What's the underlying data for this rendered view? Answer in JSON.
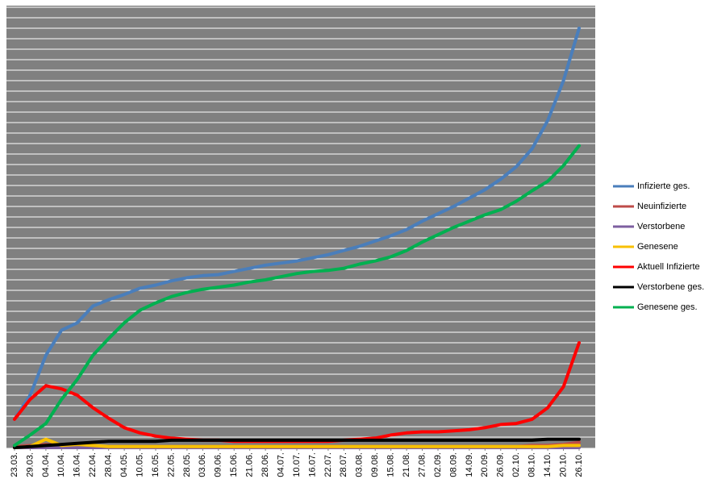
{
  "chart_data": {
    "type": "line",
    "categories": [
      "23.03.",
      "29.03.",
      "04.04.",
      "10.04.",
      "16.04.",
      "22.04.",
      "28.04.",
      "04.05.",
      "10.05.",
      "16.05.",
      "22.05.",
      "28.05.",
      "03.06.",
      "09.06.",
      "15.06.",
      "21.06.",
      "28.06.",
      "04.07.",
      "10.07.",
      "16.07.",
      "22.07.",
      "28.07.",
      "03.08.",
      "09.08.",
      "15.08.",
      "21.08.",
      "27.08.",
      "02.09.",
      "08.09.",
      "14.09.",
      "20.09.",
      "26.09.",
      "02.10.",
      "08.10.",
      "14.10.",
      "20.10.",
      "26.10."
    ],
    "series": [
      {
        "name": "Infizierte ges.",
        "color": "#4a7ebb",
        "values": [
          2.7,
          5.0,
          8.8,
          11.2,
          11.9,
          13.5,
          14.1,
          14.6,
          15.2,
          15.5,
          15.9,
          16.2,
          16.4,
          16.5,
          16.8,
          17.1,
          17.4,
          17.6,
          17.8,
          18.1,
          18.4,
          18.8,
          19.2,
          19.7,
          20.2,
          20.8,
          21.6,
          22.3,
          23.0,
          23.8,
          24.6,
          25.6,
          26.8,
          28.5,
          31.2,
          35.0,
          40.0
        ]
      },
      {
        "name": "Neuinfizierte",
        "color": "#be4b48",
        "values": [
          0.1,
          0.2,
          0.3,
          0.2,
          0.1,
          0.1,
          0.1,
          0.1,
          0.1,
          0.1,
          0.1,
          0.1,
          0.1,
          0.1,
          0.1,
          0.1,
          0.1,
          0.1,
          0.1,
          0.1,
          0.1,
          0.1,
          0.1,
          0.1,
          0.1,
          0.1,
          0.1,
          0.1,
          0.1,
          0.1,
          0.1,
          0.1,
          0.1,
          0.2,
          0.2,
          0.3,
          0.5
        ]
      },
      {
        "name": "Verstorbene",
        "color": "#7d5fa0",
        "values": [
          0,
          0,
          0,
          0,
          0,
          0,
          0,
          0,
          0,
          0,
          0,
          0,
          0,
          0,
          0,
          0,
          0,
          0,
          0,
          0,
          0,
          0,
          0,
          0,
          0,
          0,
          0,
          0,
          0,
          0,
          0,
          0,
          0,
          0,
          0,
          0,
          0
        ]
      },
      {
        "name": "Genesene",
        "color": "#f8c000",
        "values": [
          0,
          0.1,
          0.8,
          0.2,
          0.3,
          0.2,
          0.1,
          0.1,
          0.1,
          0.1,
          0.1,
          0.1,
          0.1,
          0.1,
          0.1,
          0.1,
          0.1,
          0.1,
          0.1,
          0.1,
          0.1,
          0.1,
          0.1,
          0.1,
          0.1,
          0.1,
          0.1,
          0.1,
          0.1,
          0.1,
          0.1,
          0.1,
          0.1,
          0.1,
          0.1,
          0.2,
          0.2
        ]
      },
      {
        "name": "Aktuell Infizierte",
        "color": "#ff0000",
        "values": [
          2.7,
          4.6,
          5.9,
          5.6,
          5.0,
          3.8,
          2.8,
          1.9,
          1.4,
          1.1,
          0.9,
          0.8,
          0.7,
          0.7,
          0.6,
          0.6,
          0.6,
          0.6,
          0.6,
          0.6,
          0.6,
          0.7,
          0.8,
          0.9,
          1.2,
          1.4,
          1.5,
          1.5,
          1.6,
          1.7,
          1.9,
          2.2,
          2.3,
          2.7,
          3.8,
          5.8,
          10.0
        ]
      },
      {
        "name": "Verstorbene ges.",
        "color": "#000000",
        "values": [
          0,
          0.1,
          0.2,
          0.3,
          0.4,
          0.5,
          0.6,
          0.6,
          0.6,
          0.6,
          0.7,
          0.7,
          0.7,
          0.7,
          0.7,
          0.7,
          0.7,
          0.7,
          0.7,
          0.7,
          0.7,
          0.7,
          0.7,
          0.7,
          0.7,
          0.7,
          0.7,
          0.7,
          0.7,
          0.7,
          0.7,
          0.7,
          0.7,
          0.7,
          0.8,
          0.8,
          0.8
        ]
      },
      {
        "name": "Genesene ges.",
        "color": "#00b050",
        "values": [
          0.2,
          1.2,
          2.3,
          4.6,
          6.5,
          8.8,
          10.4,
          11.9,
          13.1,
          13.8,
          14.4,
          14.8,
          15.1,
          15.3,
          15.5,
          15.8,
          16.0,
          16.3,
          16.6,
          16.8,
          16.9,
          17.1,
          17.5,
          17.8,
          18.2,
          18.8,
          19.6,
          20.3,
          21.0,
          21.6,
          22.2,
          22.7,
          23.5,
          24.5,
          25.4,
          26.9,
          28.8
        ]
      }
    ],
    "ylim": [
      0,
      42
    ],
    "yticks": [
      0,
      1,
      2,
      3,
      4,
      5,
      6,
      7,
      8,
      9,
      10,
      11,
      12,
      13,
      14,
      15,
      16,
      17,
      18,
      19,
      20,
      21,
      22,
      23,
      24,
      25,
      26,
      27,
      28,
      29,
      30,
      31,
      32,
      33,
      34,
      35,
      36,
      37,
      38,
      39,
      40,
      41,
      42
    ],
    "grid": true,
    "plot_background": "#808080",
    "legend": "right"
  }
}
